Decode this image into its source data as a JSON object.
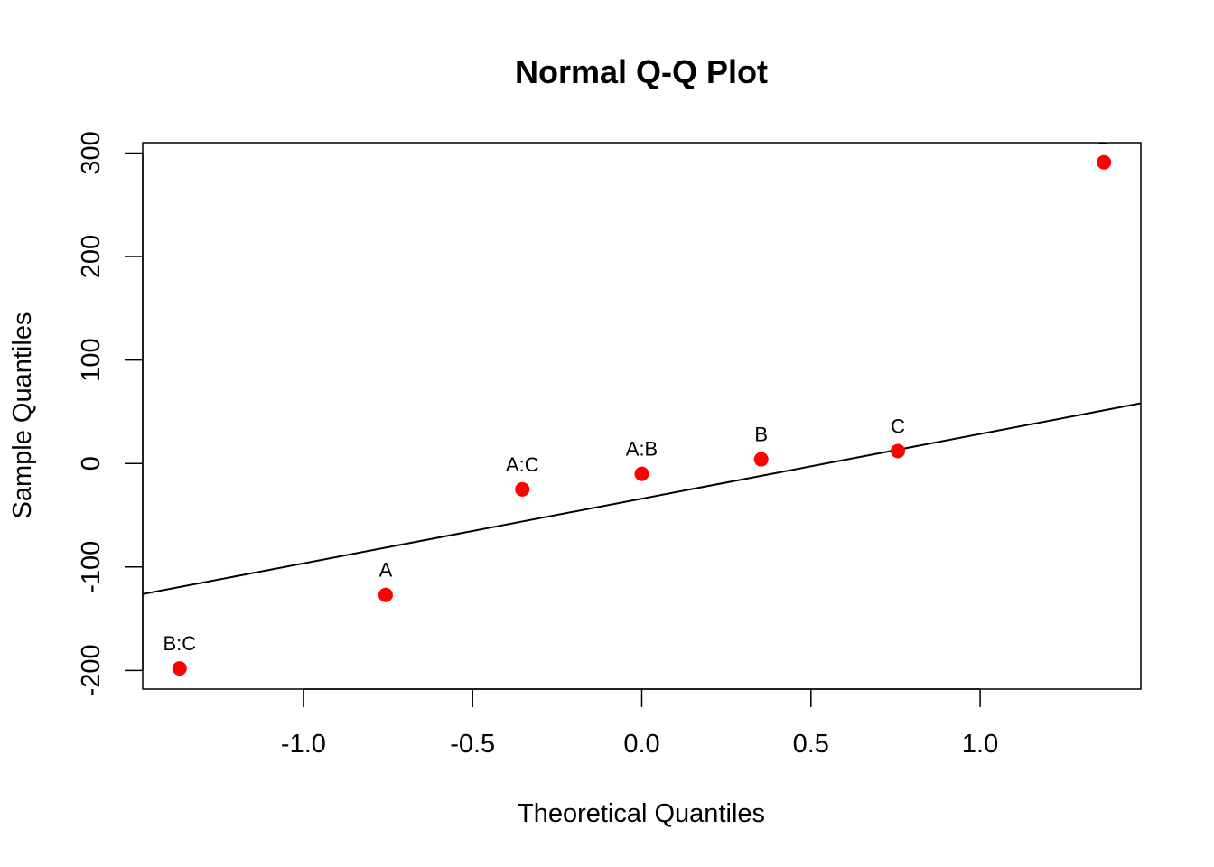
{
  "chart_data": {
    "type": "scatter",
    "title": "Normal Q-Q Plot",
    "xlabel": "Theoretical Quantiles",
    "ylabel": "Sample Quantiles",
    "xlim": [
      -1.475,
      1.475
    ],
    "ylim": [
      -218,
      310
    ],
    "x_ticks": [
      -1.0,
      -0.5,
      0.0,
      0.5,
      1.0
    ],
    "x_tick_labels": [
      "-1.0",
      "-0.5",
      "0.0",
      "0.5",
      "1.0"
    ],
    "y_ticks": [
      -200,
      -100,
      0,
      100,
      200,
      300
    ],
    "y_tick_labels": [
      "-200",
      "-100",
      "0",
      "100",
      "200",
      "300"
    ],
    "point_color": "#ff0000",
    "points": [
      {
        "label": "B:C",
        "x": -1.366,
        "y": -198
      },
      {
        "label": "A",
        "x": -0.757,
        "y": -127
      },
      {
        "label": "A:C",
        "x": -0.353,
        "y": -25
      },
      {
        "label": "A:B",
        "x": 0.0,
        "y": -10
      },
      {
        "label": "B",
        "x": 0.353,
        "y": 4
      },
      {
        "label": "C",
        "x": 0.757,
        "y": 12
      },
      {
        "label": "D",
        "x": 1.366,
        "y": 291
      }
    ],
    "reference_line": {
      "intercept": -34,
      "slope": 62.5
    }
  }
}
